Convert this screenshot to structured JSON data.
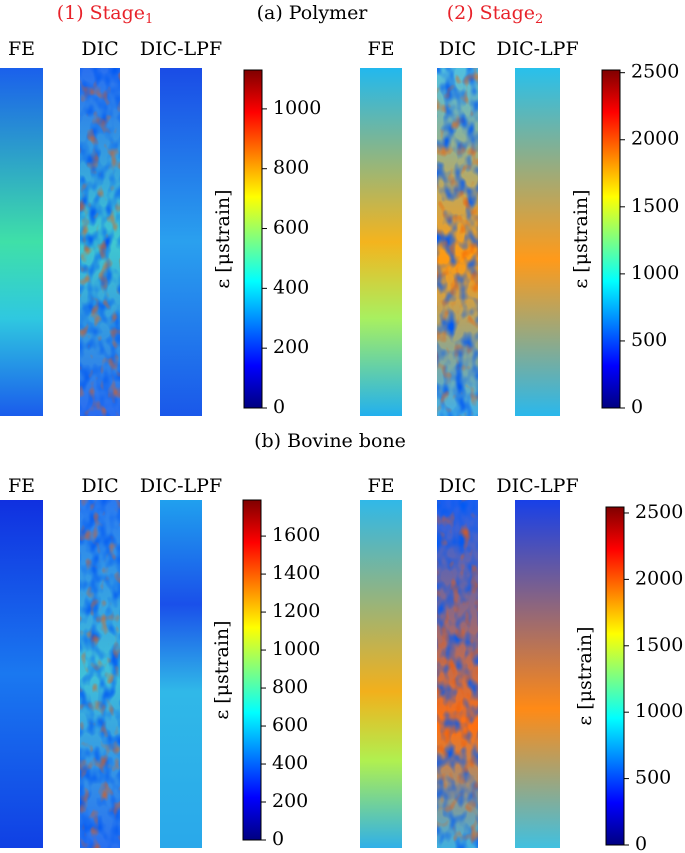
{
  "figure": {
    "rows": [
      {
        "title": "(a) Polymer",
        "panels": [
          {
            "stage": "(1) Stage",
            "stage_sub": "1",
            "columns": [
              "FE",
              "DIC",
              "DIC-LPF"
            ],
            "colorbar": {
              "label": "ε [μstrain]",
              "lim": [
                0,
                1130
              ],
              "ticks": [
                0,
                200,
                400,
                600,
                800,
                1000
              ]
            }
          },
          {
            "stage": "(2) Stage",
            "stage_sub": "2",
            "columns": [
              "FE",
              "DIC",
              "DIC-LPF"
            ],
            "colorbar": {
              "label": "ε [μstrain]",
              "lim": [
                0,
                2520
              ],
              "ticks": [
                0,
                500,
                1000,
                1500,
                2000,
                2500
              ]
            }
          }
        ]
      },
      {
        "title": "(b) Bovine bone",
        "panels": [
          {
            "columns": [
              "FE",
              "DIC",
              "DIC-LPF"
            ],
            "colorbar": {
              "label": "ε [μstrain]",
              "lim": [
                0,
                1790
              ],
              "ticks": [
                0,
                200,
                400,
                600,
                800,
                1000,
                1200,
                1400,
                1600
              ]
            }
          },
          {
            "columns": [
              "FE",
              "DIC",
              "DIC-LPF"
            ],
            "colorbar": {
              "label": "ε [μstrain]",
              "lim": [
                0,
                2545
              ],
              "ticks": [
                0,
                500,
                1000,
                1500,
                2000,
                2500
              ]
            }
          }
        ]
      }
    ]
  }
}
